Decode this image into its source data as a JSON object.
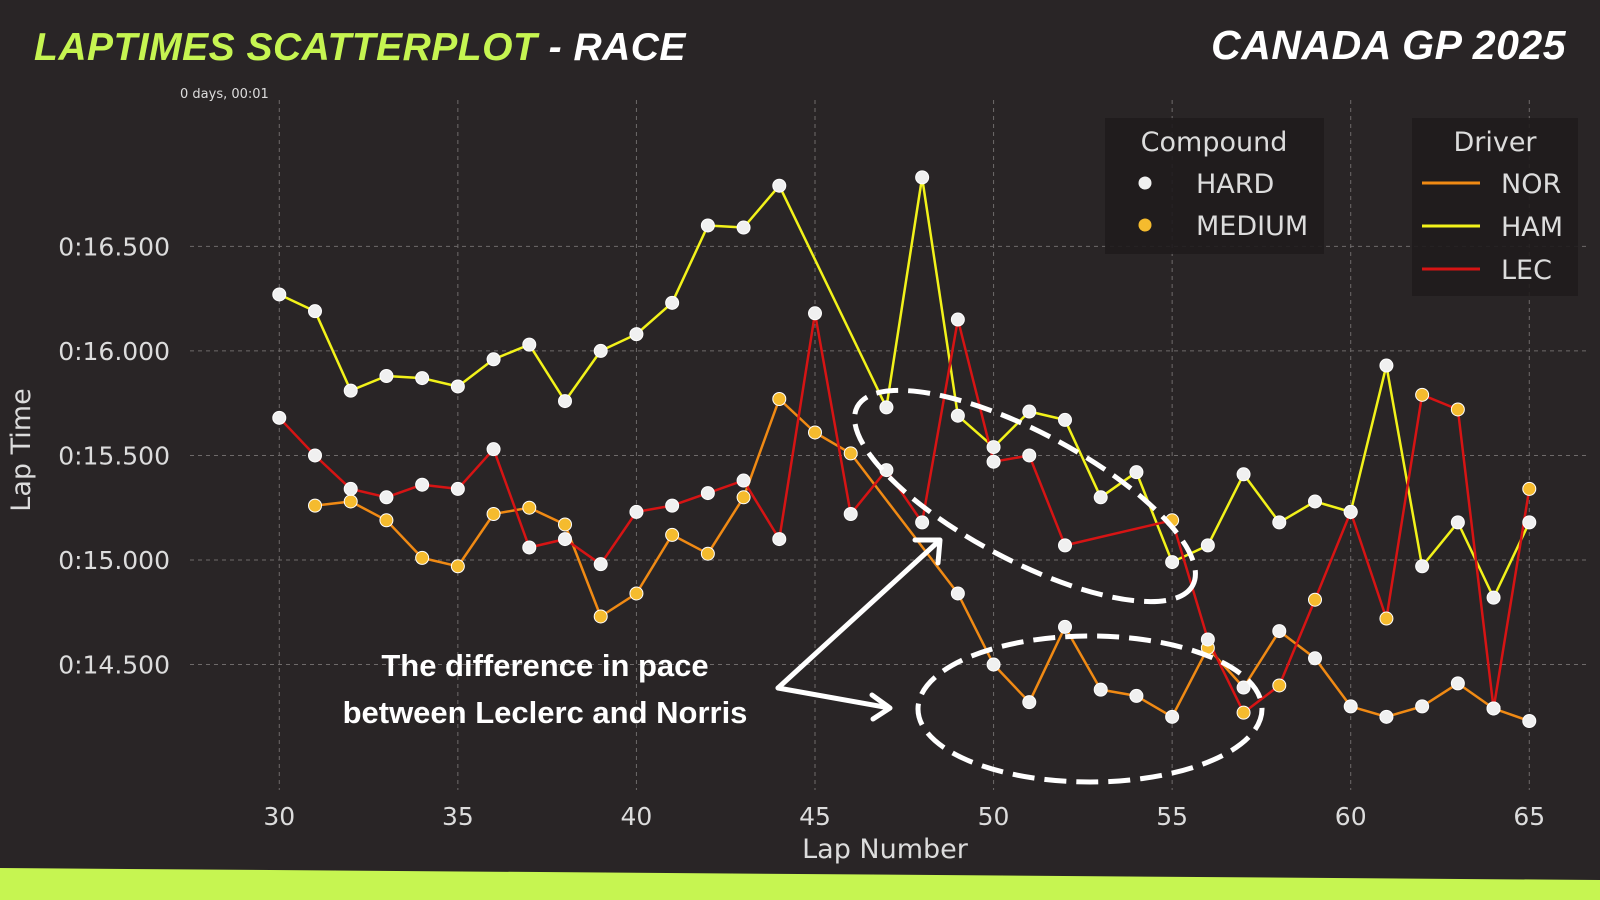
{
  "header": {
    "title_accent": "LAPTIMES SCATTERPLOT",
    "title_rest": " - RACE",
    "event": "CANADA GP 2025",
    "timestamp": "0 days, 00:01"
  },
  "colors": {
    "background": "#292526",
    "accent": "#c6f551",
    "grid": "#6e6a6a",
    "NOR": "#f08a14",
    "HAM": "#f2f21a",
    "LEC": "#d61414",
    "HARD": "#f0f0f0",
    "MEDIUM": "#f5bb2e"
  },
  "annotation": {
    "line1": "The difference in pace",
    "line2": "between Leclerc and Norris"
  },
  "chart_data": {
    "type": "scatter",
    "xlabel": "Lap Number",
    "ylabel": "Lap Time",
    "xlim": [
      27.5,
      66.7
    ],
    "ylim": [
      13.9,
      17.2
    ],
    "xticks": [
      30,
      35,
      40,
      45,
      50,
      55,
      60,
      65
    ],
    "yticks": [
      14.5,
      15.0,
      15.5,
      16.0,
      16.5
    ],
    "ytick_labels": [
      "0:14.500",
      "0:15.000",
      "0:15.500",
      "0:16.000",
      "0:16.500"
    ],
    "grid": true,
    "legend_compound": {
      "title": "Compound",
      "placement": "top-right",
      "entries": [
        {
          "label": "HARD",
          "compound": "HARD"
        },
        {
          "label": "MEDIUM",
          "compound": "MEDIUM"
        }
      ]
    },
    "legend_driver": {
      "title": "Driver",
      "placement": "top-right",
      "entries": [
        {
          "label": "NOR",
          "driver": "NOR"
        },
        {
          "label": "HAM",
          "driver": "HAM"
        },
        {
          "label": "LEC",
          "driver": "LEC"
        }
      ]
    },
    "series": [
      {
        "name": "NOR",
        "points": [
          [
            31,
            15.26,
            "MEDIUM"
          ],
          [
            32,
            15.28,
            "MEDIUM"
          ],
          [
            33,
            15.19,
            "MEDIUM"
          ],
          [
            34,
            15.01,
            "MEDIUM"
          ],
          [
            35,
            14.97,
            "MEDIUM"
          ],
          [
            36,
            15.22,
            "MEDIUM"
          ],
          [
            37,
            15.25,
            "MEDIUM"
          ],
          [
            38,
            15.17,
            "MEDIUM"
          ],
          [
            39,
            14.73,
            "MEDIUM"
          ],
          [
            40,
            14.84,
            "MEDIUM"
          ],
          [
            41,
            15.12,
            "MEDIUM"
          ],
          [
            42,
            15.03,
            "MEDIUM"
          ],
          [
            43,
            15.3,
            "MEDIUM"
          ],
          [
            44,
            15.77,
            "MEDIUM"
          ],
          [
            45,
            15.61,
            "MEDIUM"
          ],
          [
            46,
            15.51,
            "MEDIUM"
          ],
          [
            49,
            14.84,
            "HARD"
          ],
          [
            50,
            14.5,
            "HARD"
          ],
          [
            51,
            14.32,
            "HARD"
          ],
          [
            52,
            14.68,
            "HARD"
          ],
          [
            53,
            14.38,
            "HARD"
          ],
          [
            54,
            14.35,
            "HARD"
          ],
          [
            55,
            14.25,
            "HARD"
          ],
          [
            56,
            14.58,
            "MEDIUM"
          ],
          [
            57,
            14.39,
            "HARD"
          ],
          [
            58,
            14.66,
            "HARD"
          ],
          [
            59,
            14.53,
            "HARD"
          ],
          [
            60,
            14.3,
            "HARD"
          ],
          [
            61,
            14.25,
            "HARD"
          ],
          [
            62,
            14.3,
            "HARD"
          ],
          [
            63,
            14.41,
            "HARD"
          ],
          [
            64,
            14.29,
            "HARD"
          ],
          [
            65,
            14.23,
            "HARD"
          ]
        ]
      },
      {
        "name": "HAM",
        "points": [
          [
            30,
            16.27,
            "HARD"
          ],
          [
            31,
            16.19,
            "HARD"
          ],
          [
            32,
            15.81,
            "HARD"
          ],
          [
            33,
            15.88,
            "HARD"
          ],
          [
            34,
            15.87,
            "HARD"
          ],
          [
            35,
            15.83,
            "HARD"
          ],
          [
            36,
            15.96,
            "HARD"
          ],
          [
            37,
            16.03,
            "HARD"
          ],
          [
            38,
            15.76,
            "HARD"
          ],
          [
            39,
            16.0,
            "HARD"
          ],
          [
            40,
            16.08,
            "HARD"
          ],
          [
            41,
            16.23,
            "HARD"
          ],
          [
            42,
            16.6,
            "HARD"
          ],
          [
            43,
            16.59,
            "HARD"
          ],
          [
            44,
            16.79,
            "HARD"
          ],
          [
            47,
            15.73,
            "HARD"
          ],
          [
            48,
            16.83,
            "HARD"
          ],
          [
            49,
            15.69,
            "HARD"
          ],
          [
            50,
            15.54,
            "HARD"
          ],
          [
            51,
            15.71,
            "HARD"
          ],
          [
            52,
            15.67,
            "HARD"
          ],
          [
            53,
            15.3,
            "HARD"
          ],
          [
            54,
            15.42,
            "HARD"
          ],
          [
            55,
            14.99,
            "HARD"
          ],
          [
            56,
            15.07,
            "HARD"
          ],
          [
            57,
            15.41,
            "HARD"
          ],
          [
            58,
            15.18,
            "HARD"
          ],
          [
            59,
            15.28,
            "HARD"
          ],
          [
            60,
            15.23,
            "HARD"
          ],
          [
            61,
            15.93,
            "HARD"
          ],
          [
            62,
            14.97,
            "HARD"
          ],
          [
            63,
            15.18,
            "HARD"
          ],
          [
            64,
            14.82,
            "HARD"
          ],
          [
            65,
            15.18,
            "HARD"
          ]
        ]
      },
      {
        "name": "LEC",
        "points": [
          [
            30,
            15.68,
            "HARD"
          ],
          [
            31,
            15.5,
            "HARD"
          ],
          [
            32,
            15.34,
            "HARD"
          ],
          [
            33,
            15.3,
            "HARD"
          ],
          [
            34,
            15.36,
            "HARD"
          ],
          [
            35,
            15.34,
            "HARD"
          ],
          [
            36,
            15.53,
            "HARD"
          ],
          [
            37,
            15.06,
            "HARD"
          ],
          [
            38,
            15.1,
            "HARD"
          ],
          [
            39,
            14.98,
            "HARD"
          ],
          [
            40,
            15.23,
            "HARD"
          ],
          [
            41,
            15.26,
            "HARD"
          ],
          [
            42,
            15.32,
            "HARD"
          ],
          [
            43,
            15.38,
            "HARD"
          ],
          [
            44,
            15.1,
            "HARD"
          ],
          [
            45,
            16.18,
            "HARD"
          ],
          [
            46,
            15.22,
            "HARD"
          ],
          [
            47,
            15.43,
            "HARD"
          ],
          [
            48,
            15.18,
            "HARD"
          ],
          [
            49,
            16.15,
            "HARD"
          ],
          [
            50,
            15.47,
            "HARD"
          ],
          [
            51,
            15.5,
            "HARD"
          ],
          [
            52,
            15.07,
            "HARD"
          ],
          [
            55,
            15.19,
            "MEDIUM"
          ],
          [
            56,
            14.62,
            "HARD"
          ],
          [
            57,
            14.27,
            "MEDIUM"
          ],
          [
            58,
            14.4,
            "MEDIUM"
          ],
          [
            59,
            14.81,
            "MEDIUM"
          ],
          [
            60,
            15.23,
            "HARD"
          ],
          [
            61,
            14.72,
            "MEDIUM"
          ],
          [
            62,
            15.79,
            "MEDIUM"
          ],
          [
            63,
            15.72,
            "MEDIUM"
          ],
          [
            64,
            14.29,
            "HARD"
          ],
          [
            65,
            15.34,
            "MEDIUM"
          ]
        ]
      }
    ]
  }
}
